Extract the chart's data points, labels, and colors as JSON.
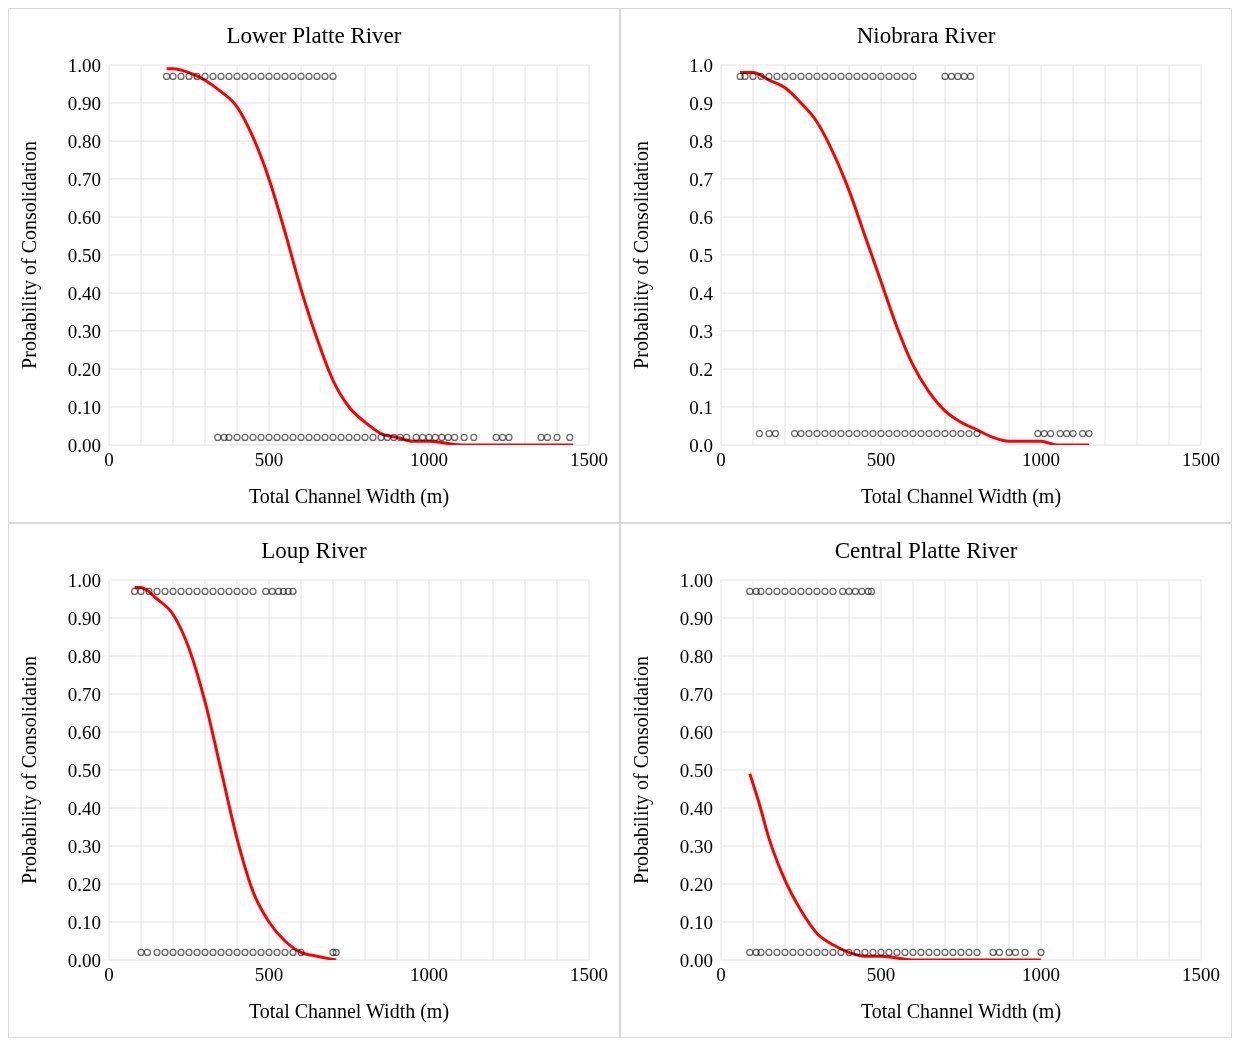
{
  "chart_data": [
    {
      "type": "scatter",
      "title": "Lower Platte River",
      "xlabel": "Total Channel Width (m)",
      "ylabel": "Probability of Consolidation",
      "xlim": [
        0,
        1500
      ],
      "xticks": [
        0,
        {
          "value": 100,
          "label": null
        },
        {
          "value": 200,
          "label": null
        },
        {
          "value": 300,
          "label": null
        },
        {
          "value": 400,
          "label": null
        },
        500,
        {
          "value": 600,
          "label": null
        },
        {
          "value": 700,
          "label": null
        },
        {
          "value": 800,
          "label": null
        },
        {
          "value": 900,
          "label": null
        },
        1000,
        {
          "value": 1100,
          "label": null
        },
        {
          "value": 1200,
          "label": null
        },
        {
          "value": 1300,
          "label": null
        },
        {
          "value": 1400,
          "label": null
        },
        1500
      ],
      "ylim": [
        0,
        1
      ],
      "yticks": [
        {
          "value": 0,
          "label": "0.00"
        },
        {
          "value": 0.1,
          "label": "0.10"
        },
        {
          "value": 0.2,
          "label": "0.20"
        },
        {
          "value": 0.3,
          "label": "0.30"
        },
        {
          "value": 0.4,
          "label": "0.40"
        },
        {
          "value": 0.5,
          "label": "0.50"
        },
        {
          "value": 0.6,
          "label": "0.60"
        },
        {
          "value": 0.7,
          "label": "0.70"
        },
        {
          "value": 0.8,
          "label": "0.80"
        },
        {
          "value": 0.9,
          "label": "0.90"
        },
        {
          "value": 1,
          "label": "1.00"
        }
      ],
      "grid": true,
      "series": [
        {
          "color": "#000000",
          "marker": "circle",
          "x": [
            180,
            200,
            225,
            250,
            275,
            300,
            325,
            350,
            375,
            400,
            425,
            450,
            475,
            500,
            525,
            550,
            575,
            600,
            625,
            650,
            675,
            700,
            340,
            360,
            375,
            400,
            425,
            450,
            475,
            500,
            525,
            550,
            575,
            600,
            625,
            650,
            675,
            700,
            725,
            750,
            775,
            800,
            825,
            850,
            870,
            890,
            910,
            930,
            960,
            980,
            1000,
            1020,
            1040,
            1060,
            1080,
            1110,
            1140,
            1210,
            1230,
            1250,
            1350,
            1370,
            1400,
            1440
          ],
          "values": [
            0.97,
            0.97,
            0.97,
            0.97,
            0.97,
            0.97,
            0.97,
            0.97,
            0.97,
            0.97,
            0.97,
            0.97,
            0.97,
            0.97,
            0.97,
            0.97,
            0.97,
            0.97,
            0.97,
            0.97,
            0.97,
            0.97,
            0.02,
            0.02,
            0.02,
            0.02,
            0.02,
            0.02,
            0.02,
            0.02,
            0.02,
            0.02,
            0.02,
            0.02,
            0.02,
            0.02,
            0.02,
            0.02,
            0.02,
            0.02,
            0.02,
            0.02,
            0.02,
            0.02,
            0.02,
            0.02,
            0.02,
            0.02,
            0.02,
            0.02,
            0.02,
            0.02,
            0.02,
            0.02,
            0.02,
            0.02,
            0.02,
            0.02,
            0.02,
            0.02,
            0.02,
            0.02,
            0.02,
            0.02
          ]
        },
        {
          "type": "line",
          "color": "#ff0000",
          "marker": "none",
          "x": [
            180,
            200,
            250,
            300,
            350,
            400,
            450,
            500,
            550,
            600,
            650,
            700,
            750,
            800,
            850,
            900,
            950,
            1000,
            1100,
            1200,
            1300,
            1450
          ],
          "values": [
            0.99,
            0.99,
            0.98,
            0.96,
            0.93,
            0.89,
            0.81,
            0.7,
            0.56,
            0.41,
            0.28,
            0.17,
            0.1,
            0.06,
            0.03,
            0.02,
            0.01,
            0.01,
            0.0,
            0.0,
            0.0,
            0.0
          ]
        }
      ]
    },
    {
      "type": "scatter",
      "title": "Niobrara River",
      "xlabel": "Total Channel Width (m)",
      "ylabel": "Probability of Consolidation",
      "xlim": [
        0,
        1500
      ],
      "xticks": [
        0,
        {
          "value": 100,
          "label": null
        },
        {
          "value": 200,
          "label": null
        },
        {
          "value": 300,
          "label": null
        },
        {
          "value": 400,
          "label": null
        },
        500,
        {
          "value": 600,
          "label": null
        },
        {
          "value": 700,
          "label": null
        },
        {
          "value": 800,
          "label": null
        },
        {
          "value": 900,
          "label": null
        },
        1000,
        {
          "value": 1100,
          "label": null
        },
        {
          "value": 1200,
          "label": null
        },
        {
          "value": 1300,
          "label": null
        },
        {
          "value": 1400,
          "label": null
        },
        1500
      ],
      "ylim": [
        0,
        1
      ],
      "yticks": [
        {
          "value": 0,
          "label": "0.0"
        },
        0.1,
        0.2,
        0.3,
        0.4,
        0.5,
        0.6,
        0.7,
        0.8,
        0.9,
        {
          "value": 1,
          "label": "1.0"
        }
      ],
      "grid": true,
      "series": [
        {
          "color": "#000000",
          "marker": "circle",
          "x": [
            60,
            75,
            100,
            125,
            150,
            175,
            200,
            225,
            250,
            275,
            300,
            325,
            350,
            375,
            400,
            425,
            450,
            475,
            500,
            525,
            550,
            575,
            600,
            700,
            720,
            740,
            760,
            780,
            120,
            150,
            170,
            230,
            250,
            275,
            300,
            325,
            350,
            375,
            400,
            425,
            450,
            475,
            500,
            525,
            550,
            575,
            600,
            625,
            650,
            675,
            700,
            725,
            750,
            775,
            800,
            990,
            1010,
            1030,
            1060,
            1080,
            1100,
            1130,
            1150
          ],
          "values": [
            0.97,
            0.97,
            0.97,
            0.97,
            0.97,
            0.97,
            0.97,
            0.97,
            0.97,
            0.97,
            0.97,
            0.97,
            0.97,
            0.97,
            0.97,
            0.97,
            0.97,
            0.97,
            0.97,
            0.97,
            0.97,
            0.97,
            0.97,
            0.97,
            0.97,
            0.97,
            0.97,
            0.97,
            0.03,
            0.03,
            0.03,
            0.03,
            0.03,
            0.03,
            0.03,
            0.03,
            0.03,
            0.03,
            0.03,
            0.03,
            0.03,
            0.03,
            0.03,
            0.03,
            0.03,
            0.03,
            0.03,
            0.03,
            0.03,
            0.03,
            0.03,
            0.03,
            0.03,
            0.03,
            0.03,
            0.03,
            0.03,
            0.03,
            0.03,
            0.03,
            0.03,
            0.03,
            0.03
          ]
        },
        {
          "type": "line",
          "color": "#ff0000",
          "marker": "none",
          "x": [
            60,
            100,
            150,
            200,
            250,
            300,
            350,
            400,
            450,
            500,
            550,
            600,
            650,
            700,
            750,
            800,
            850,
            900,
            950,
            1000,
            1050,
            1100,
            1150
          ],
          "values": [
            0.98,
            0.98,
            0.96,
            0.94,
            0.9,
            0.85,
            0.77,
            0.67,
            0.55,
            0.43,
            0.31,
            0.21,
            0.14,
            0.09,
            0.06,
            0.04,
            0.02,
            0.01,
            0.01,
            0.01,
            0.0,
            0.0,
            0.0
          ]
        }
      ]
    },
    {
      "type": "scatter",
      "title": "Loup River",
      "xlabel": "Total Channel Width (m)",
      "ylabel": "Probability of Consolidation",
      "xlim": [
        0,
        1500
      ],
      "xticks": [
        0,
        {
          "value": 100,
          "label": null
        },
        {
          "value": 200,
          "label": null
        },
        {
          "value": 300,
          "label": null
        },
        {
          "value": 400,
          "label": null
        },
        500,
        {
          "value": 600,
          "label": null
        },
        {
          "value": 700,
          "label": null
        },
        {
          "value": 800,
          "label": null
        },
        {
          "value": 900,
          "label": null
        },
        1000,
        {
          "value": 1100,
          "label": null
        },
        {
          "value": 1200,
          "label": null
        },
        {
          "value": 1300,
          "label": null
        },
        {
          "value": 1400,
          "label": null
        },
        1500
      ],
      "ylim": [
        0,
        1
      ],
      "yticks": [
        {
          "value": 0,
          "label": "0.00"
        },
        {
          "value": 0.1,
          "label": "0.10"
        },
        {
          "value": 0.2,
          "label": "0.20"
        },
        {
          "value": 0.3,
          "label": "0.30"
        },
        {
          "value": 0.4,
          "label": "0.40"
        },
        {
          "value": 0.5,
          "label": "0.50"
        },
        {
          "value": 0.6,
          "label": "0.60"
        },
        {
          "value": 0.7,
          "label": "0.70"
        },
        {
          "value": 0.8,
          "label": "0.80"
        },
        {
          "value": 0.9,
          "label": "0.90"
        },
        {
          "value": 1,
          "label": "1.00"
        }
      ],
      "grid": true,
      "series": [
        {
          "color": "#000000",
          "marker": "circle",
          "x": [
            80,
            100,
            125,
            150,
            175,
            200,
            225,
            250,
            275,
            300,
            325,
            350,
            375,
            400,
            425,
            450,
            490,
            510,
            530,
            545,
            560,
            575,
            100,
            120,
            150,
            175,
            200,
            225,
            250,
            275,
            300,
            325,
            350,
            375,
            400,
            425,
            450,
            475,
            500,
            525,
            550,
            575,
            600,
            700,
            710
          ],
          "values": [
            0.97,
            0.97,
            0.97,
            0.97,
            0.97,
            0.97,
            0.97,
            0.97,
            0.97,
            0.97,
            0.97,
            0.97,
            0.97,
            0.97,
            0.97,
            0.97,
            0.97,
            0.97,
            0.97,
            0.97,
            0.97,
            0.97,
            0.02,
            0.02,
            0.02,
            0.02,
            0.02,
            0.02,
            0.02,
            0.02,
            0.02,
            0.02,
            0.02,
            0.02,
            0.02,
            0.02,
            0.02,
            0.02,
            0.02,
            0.02,
            0.02,
            0.02,
            0.02,
            0.02,
            0.02
          ]
        },
        {
          "type": "line",
          "color": "#ff0000",
          "marker": "none",
          "x": [
            80,
            100,
            150,
            200,
            250,
            300,
            350,
            400,
            450,
            500,
            550,
            600,
            650,
            710
          ],
          "values": [
            0.98,
            0.98,
            0.95,
            0.91,
            0.82,
            0.68,
            0.5,
            0.32,
            0.18,
            0.1,
            0.05,
            0.02,
            0.01,
            0.0
          ]
        }
      ]
    },
    {
      "type": "scatter",
      "title": "Central Platte River",
      "xlabel": "Total Channel Width (m)",
      "ylabel": "Probability of Consolidation",
      "xlim": [
        0,
        1500
      ],
      "xticks": [
        0,
        {
          "value": 100,
          "label": null
        },
        {
          "value": 200,
          "label": null
        },
        {
          "value": 300,
          "label": null
        },
        {
          "value": 400,
          "label": null
        },
        500,
        {
          "value": 600,
          "label": null
        },
        {
          "value": 700,
          "label": null
        },
        {
          "value": 800,
          "label": null
        },
        {
          "value": 900,
          "label": null
        },
        1000,
        {
          "value": 1100,
          "label": null
        },
        {
          "value": 1200,
          "label": null
        },
        {
          "value": 1300,
          "label": null
        },
        {
          "value": 1400,
          "label": null
        },
        1500
      ],
      "ylim": [
        0,
        1
      ],
      "yticks": [
        {
          "value": 0,
          "label": "0.00"
        },
        {
          "value": 0.1,
          "label": "0.10"
        },
        {
          "value": 0.2,
          "label": "0.20"
        },
        {
          "value": 0.3,
          "label": "0.30"
        },
        {
          "value": 0.4,
          "label": "0.40"
        },
        {
          "value": 0.5,
          "label": "0.50"
        },
        {
          "value": 0.6,
          "label": "0.60"
        },
        {
          "value": 0.7,
          "label": "0.70"
        },
        {
          "value": 0.8,
          "label": "0.80"
        },
        {
          "value": 0.9,
          "label": "0.90"
        },
        {
          "value": 1,
          "label": "1.00"
        }
      ],
      "grid": true,
      "series": [
        {
          "color": "#000000",
          "marker": "circle",
          "x": [
            90,
            110,
            125,
            150,
            175,
            200,
            225,
            250,
            275,
            300,
            325,
            350,
            380,
            400,
            420,
            440,
            460,
            470,
            90,
            110,
            125,
            150,
            175,
            200,
            225,
            250,
            275,
            300,
            325,
            350,
            375,
            400,
            425,
            450,
            475,
            500,
            525,
            550,
            575,
            600,
            625,
            650,
            675,
            700,
            725,
            750,
            775,
            800,
            850,
            870,
            900,
            920,
            950,
            1000
          ],
          "values": [
            0.97,
            0.97,
            0.97,
            0.97,
            0.97,
            0.97,
            0.97,
            0.97,
            0.97,
            0.97,
            0.97,
            0.97,
            0.97,
            0.97,
            0.97,
            0.97,
            0.97,
            0.97,
            0.02,
            0.02,
            0.02,
            0.02,
            0.02,
            0.02,
            0.02,
            0.02,
            0.02,
            0.02,
            0.02,
            0.02,
            0.02,
            0.02,
            0.02,
            0.02,
            0.02,
            0.02,
            0.02,
            0.02,
            0.02,
            0.02,
            0.02,
            0.02,
            0.02,
            0.02,
            0.02,
            0.02,
            0.02,
            0.02,
            0.02,
            0.02,
            0.02,
            0.02,
            0.02,
            0.02
          ]
        },
        {
          "type": "line",
          "color": "#ff0000",
          "marker": "none",
          "x": [
            90,
            120,
            150,
            200,
            250,
            300,
            350,
            400,
            450,
            500,
            600,
            700,
            800,
            1000
          ],
          "values": [
            0.49,
            0.41,
            0.32,
            0.21,
            0.13,
            0.07,
            0.04,
            0.02,
            0.01,
            0.01,
            0.0,
            0.0,
            0.0,
            0.0
          ]
        }
      ]
    }
  ]
}
